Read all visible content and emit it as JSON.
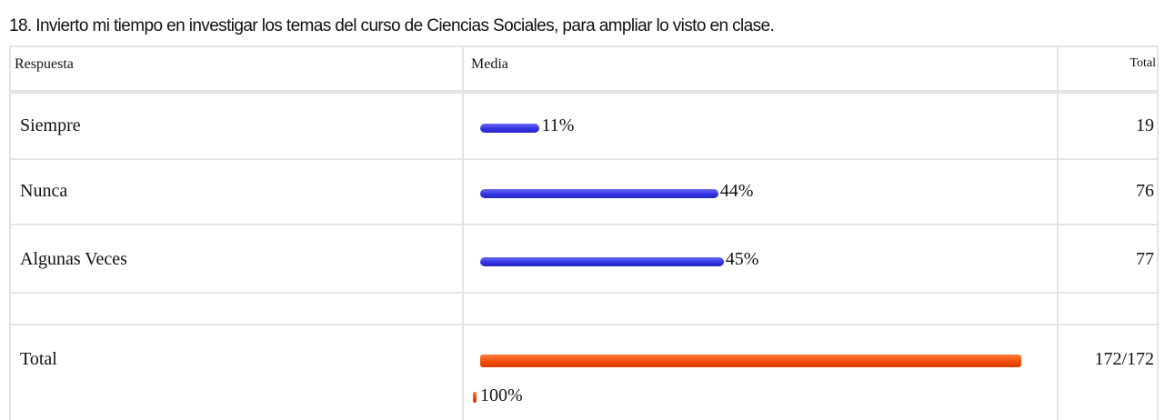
{
  "title": "18. Invierto mi tiempo en investigar los temas del curso de Ciencias Sociales, para ampliar lo visto en clase.",
  "table": {
    "header": [
      "Respuesta",
      "Media",
      "Total"
    ],
    "rows": [
      {
        "label": "Siempre",
        "value": 11,
        "value_label": "11%",
        "total": 19
      },
      {
        "label": "Nunca",
        "value": 44,
        "value_label": "44%",
        "total": 76
      },
      {
        "label": "Algunas Veces",
        "value": 45,
        "value_label": "45%",
        "total": 77
      }
    ],
    "footer": {
      "label": "Total",
      "value": 100,
      "value_label": "100%",
      "total": "172/172"
    }
  }
}
